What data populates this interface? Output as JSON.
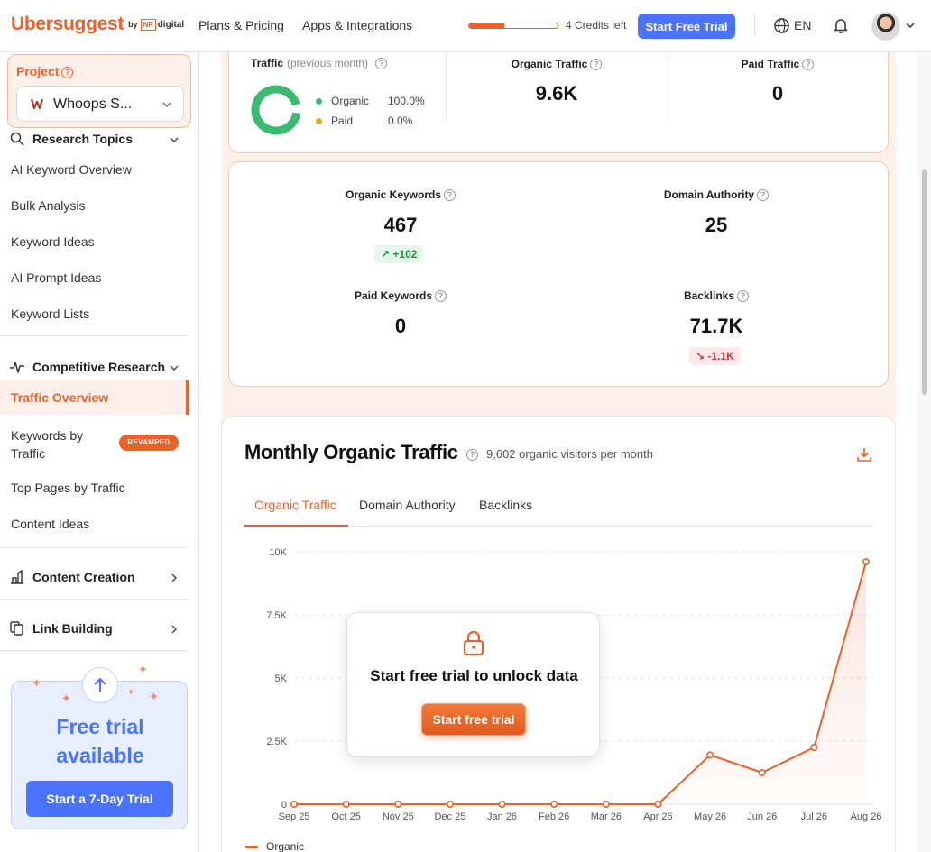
{
  "header": {
    "logo": "Ubersuggest",
    "logo_by": "by",
    "logo_np": "NP",
    "logo_digital": "digital",
    "nav": [
      "Plans & Pricing",
      "Apps & Integrations"
    ],
    "credits_fraction": 0.4,
    "credits_text": "4 Credits left",
    "trial_button": "Start Free Trial",
    "language": "EN"
  },
  "sidebar": {
    "project_label": "Project",
    "project_name": "Whoops S...",
    "research_topics": "Research Topics",
    "research_items": [
      "AI Keyword Overview",
      "Bulk Analysis",
      "Keyword Ideas",
      "AI Prompt Ideas",
      "Keyword Lists"
    ],
    "competitive_research": "Competitive Research",
    "competitive_items": [
      "Traffic Overview",
      "Keywords by Traffic",
      "Top Pages by Traffic",
      "Content Ideas"
    ],
    "revamped_badge": "REVAMPED",
    "content_creation": "Content Creation",
    "link_building": "Link Building",
    "promo_title": "Free trial available",
    "promo_button": "Start a 7-Day Trial"
  },
  "summary": {
    "traffic_label": "Traffic",
    "traffic_sub": "(previous month)",
    "organic_name": "Organic",
    "organic_share": "100.0%",
    "paid_name": "Paid",
    "paid_share": "0.0%",
    "organic_traffic_label": "Organic Traffic",
    "organic_traffic_value": "9.6K",
    "paid_traffic_label": "Paid Traffic",
    "paid_traffic_value": "0",
    "organic_keywords_label": "Organic Keywords",
    "organic_keywords_value": "467",
    "organic_keywords_change": "+102",
    "domain_authority_label": "Domain Authority",
    "domain_authority_value": "25",
    "paid_keywords_label": "Paid Keywords",
    "paid_keywords_value": "0",
    "backlinks_label": "Backlinks",
    "backlinks_value": "71.7K",
    "backlinks_change": "-1.1K"
  },
  "chart_section": {
    "title": "Monthly Organic Traffic",
    "subtitle": "9,602 organic visitors per month",
    "tabs": [
      "Organic Traffic",
      "Domain Authority",
      "Backlinks"
    ],
    "lock_text": "Start free trial to unlock data",
    "lock_button": "Start free trial",
    "legend": "Organic"
  },
  "chart_data": {
    "type": "area",
    "x": [
      "Sep 25",
      "Oct 25",
      "Nov 25",
      "Dec 25",
      "Jan 26",
      "Feb 26",
      "Mar 26",
      "Apr 26",
      "May 26",
      "Jun 26",
      "Jul 26",
      "Aug 26"
    ],
    "series": [
      {
        "name": "Organic",
        "values": [
          0,
          0,
          0,
          0,
          0,
          0,
          0,
          0,
          1950,
          1250,
          2250,
          9602
        ]
      }
    ],
    "y_ticks": [
      "0",
      "2.5K",
      "5K",
      "7.5K",
      "10K"
    ],
    "ylim": [
      0,
      10000
    ],
    "grid": "horizontal dashed",
    "legend": "bottom-left",
    "color": "#e8622b"
  }
}
